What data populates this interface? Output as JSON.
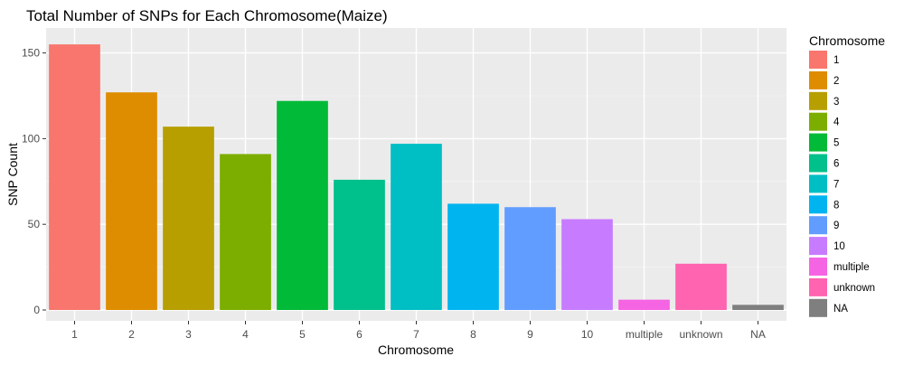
{
  "chart_data": {
    "type": "bar",
    "title": "Total Number of SNPs for Each Chromosome(Maize)",
    "xlabel": "Chromosome",
    "ylabel": "SNP Count",
    "categories": [
      "1",
      "2",
      "3",
      "4",
      "5",
      "6",
      "7",
      "8",
      "9",
      "10",
      "multiple",
      "unknown",
      "NA"
    ],
    "values": [
      155,
      127,
      107,
      91,
      122,
      76,
      97,
      62,
      60,
      53,
      6,
      27,
      3
    ],
    "ylim": [
      0,
      162
    ],
    "yticks": [
      0,
      50,
      100,
      150
    ],
    "grid": true,
    "legend": {
      "title": "Chromosome",
      "position": "right",
      "entries": [
        "1",
        "2",
        "3",
        "4",
        "5",
        "6",
        "7",
        "8",
        "9",
        "10",
        "multiple",
        "unknown",
        "NA"
      ]
    },
    "colors": [
      "#F8766D",
      "#DE8C00",
      "#B79F00",
      "#7CAE00",
      "#00BA38",
      "#00C08B",
      "#00BFC4",
      "#00B4F0",
      "#619CFF",
      "#C77CFF",
      "#F564E3",
      "#FF64B0",
      "#7F7F7F"
    ]
  }
}
